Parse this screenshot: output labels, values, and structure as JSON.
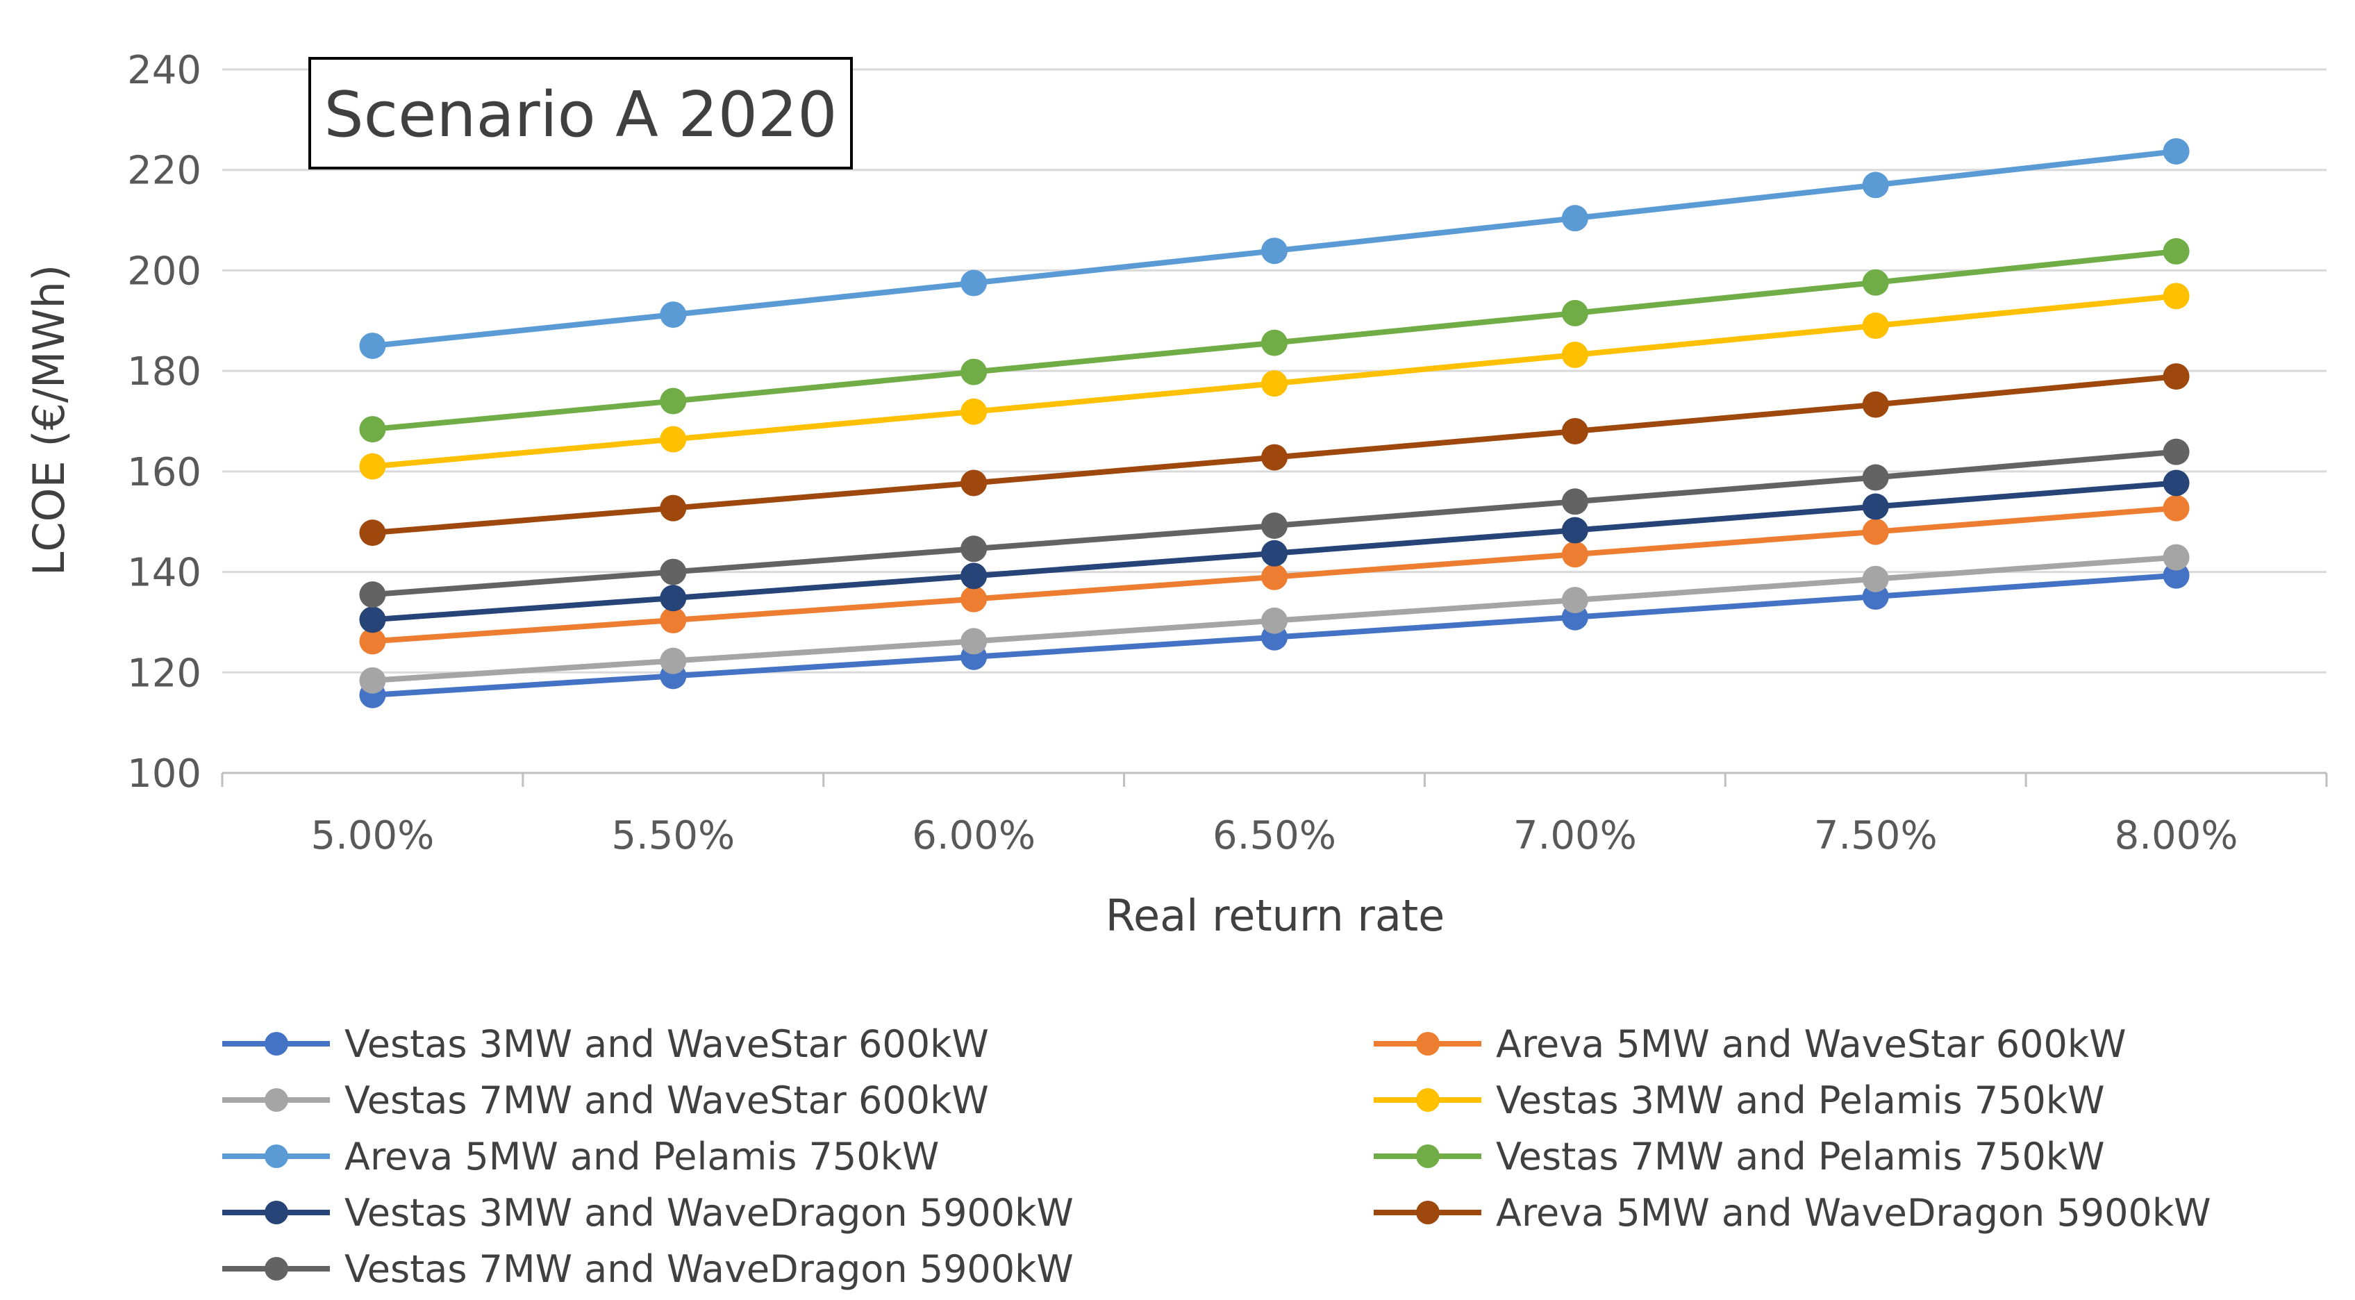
{
  "chart_data": {
    "type": "line",
    "title": "Scenario A 2020",
    "xlabel": "Real return rate",
    "ylabel": "LCOE (€/MWh)",
    "ylim": [
      100,
      240
    ],
    "yticks": [
      100,
      120,
      140,
      160,
      180,
      200,
      220,
      240
    ],
    "grid": true,
    "legend_position": "bottom",
    "categories": [
      "5.00%",
      "5.50%",
      "6.00%",
      "6.50%",
      "7.00%",
      "7.50%",
      "8.00%"
    ],
    "series": [
      {
        "name": "Vestas 3MW and WaveStar 600kW",
        "color": "#4472C4",
        "values": [
          115.5,
          119.3,
          123.1,
          127.0,
          131.0,
          135.1,
          139.3
        ]
      },
      {
        "name": "Areva 5MW and WaveStar 600kW",
        "color": "#ED7D31",
        "values": [
          126.2,
          130.4,
          134.6,
          139.0,
          143.5,
          148.0,
          152.7
        ]
      },
      {
        "name": "Vestas 7MW and WaveStar 600kW",
        "color": "#A5A5A5",
        "values": [
          118.4,
          122.3,
          126.2,
          130.3,
          134.4,
          138.6,
          142.9
        ]
      },
      {
        "name": "Vestas 3MW and Pelamis 750kW",
        "color": "#FFC000",
        "values": [
          161.0,
          166.4,
          171.9,
          177.5,
          183.2,
          189.0,
          194.9
        ]
      },
      {
        "name": "Areva 5MW and Pelamis 750kW",
        "color": "#5B9BD5",
        "values": [
          185.0,
          191.2,
          197.5,
          203.9,
          210.4,
          217.0,
          223.7
        ]
      },
      {
        "name": "Vestas 7MW and Pelamis 750kW",
        "color": "#70AD47",
        "values": [
          168.4,
          174.0,
          179.8,
          185.6,
          191.5,
          197.6,
          203.8
        ]
      },
      {
        "name": "Vestas 3MW and WaveDragon 5900kW",
        "color": "#264478",
        "values": [
          130.5,
          134.8,
          139.2,
          143.7,
          148.3,
          153.0,
          157.7
        ]
      },
      {
        "name": "Areva 5MW and WaveDragon 5900kW",
        "color": "#9E480E",
        "values": [
          147.8,
          152.7,
          157.7,
          162.8,
          168.0,
          173.3,
          178.9
        ]
      },
      {
        "name": "Vestas 7MW and WaveDragon 5900kW",
        "color": "#636363",
        "values": [
          135.5,
          140.0,
          144.6,
          149.2,
          154.0,
          158.8,
          163.9
        ]
      }
    ]
  }
}
